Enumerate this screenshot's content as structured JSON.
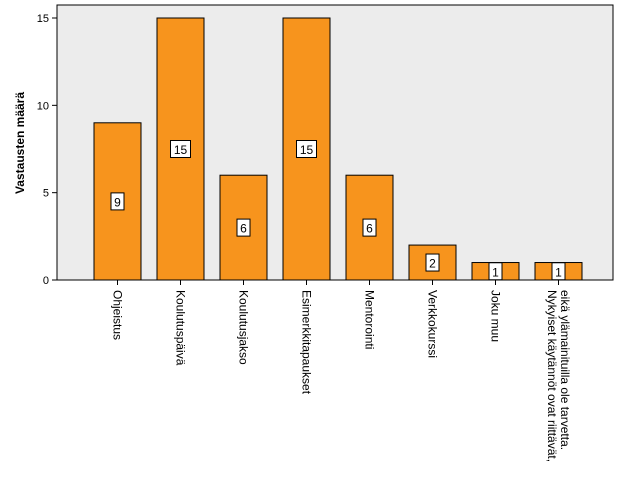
{
  "chart_data": {
    "type": "bar",
    "title": "",
    "xlabel": "",
    "ylabel": "Vastausten määrä",
    "ylim": [
      0,
      15
    ],
    "yticks": [
      0,
      5,
      10,
      15
    ],
    "categories": [
      [
        "Ohjeistus"
      ],
      [
        "Koulutuspäivä"
      ],
      [
        "Koulutusjakso"
      ],
      [
        "Esimerkkitapaukset"
      ],
      [
        "Mentorointi"
      ],
      [
        "Verkkokurssi"
      ],
      [
        "Joku muu"
      ],
      [
        "Nykyiset käytännöt ovat riittävät,",
        "eikä ylämainituilla ole tarvetta."
      ]
    ],
    "values": [
      9,
      15,
      6,
      15,
      6,
      2,
      1,
      1
    ],
    "bar_color": "#f7941d",
    "plot_background": "#ececec",
    "grid": false,
    "data_labels": true
  }
}
